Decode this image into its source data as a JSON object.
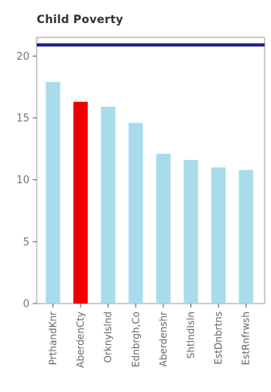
{
  "chart_data": {
    "type": "bar",
    "title": "Child Poverty",
    "categories": [
      "PrthandKnr",
      "AberdenCty",
      "OrknyIslnd",
      "Ednbrgh,Co",
      "Aberdenshr",
      "ShtlndIsln",
      "EstDnbrtns",
      "EstRnfrwsh"
    ],
    "values": [
      17.9,
      16.3,
      15.9,
      14.6,
      12.1,
      11.6,
      11.0,
      10.8
    ],
    "highlight_index": 1,
    "reference_line": 20.9,
    "yticks": [
      0,
      5,
      10,
      15,
      20
    ],
    "ylim": [
      0,
      21.5
    ],
    "xlabel": "",
    "ylabel": "",
    "colors": {
      "bar": "#a8dcea",
      "highlight": "#ee0000",
      "reference_line": "#1a1a8c",
      "axis": "#555555"
    }
  }
}
